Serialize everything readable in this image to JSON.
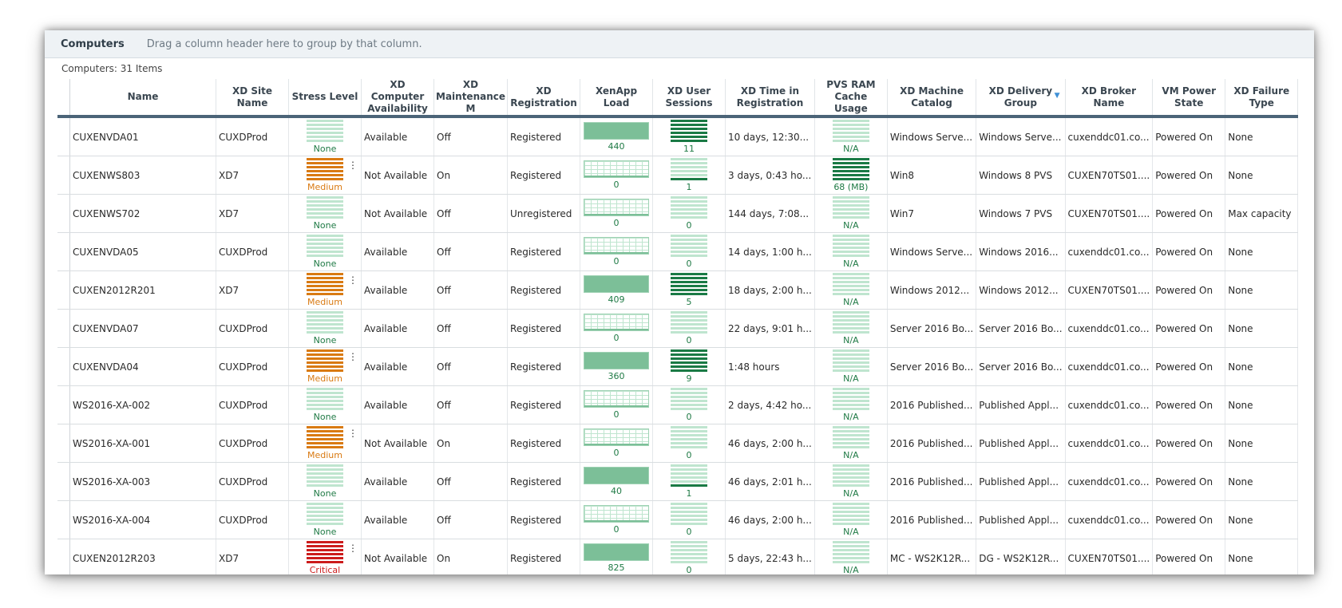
{
  "group_bar": {
    "title": "Computers",
    "hint": "Drag a column header here to group by that column."
  },
  "count_label": "Computers: 31 Items",
  "colors": {
    "none": "#1f7a45",
    "medium": "#d97a12",
    "critical": "#cc1c1c",
    "gauge_light": "#bfe5cf",
    "gauge_dark": "#1a7a45"
  },
  "columns": [
    {
      "label": "Name"
    },
    {
      "label": "XD Site Name"
    },
    {
      "label": "Stress Level"
    },
    {
      "label": "XD Computer Availability"
    },
    {
      "label": "XD Maintenance M"
    },
    {
      "label": "XD Registration"
    },
    {
      "label": "XenApp Load"
    },
    {
      "label": "XD User Sessions"
    },
    {
      "label": "XD Time in Registration"
    },
    {
      "label": "PVS RAM Cache Usage"
    },
    {
      "label": "XD Machine Catalog"
    },
    {
      "label": "XD Delivery Group"
    },
    {
      "label": "XD Broker Name"
    },
    {
      "label": "VM Power State"
    },
    {
      "label": "XD Failure Type"
    }
  ],
  "rows": [
    {
      "name": "CUXENVDA01",
      "site": "CUXDProd",
      "stress": "None",
      "stress_level": "none",
      "availability": "Available",
      "maintenance": "Off",
      "registration": "Registered",
      "load": "440",
      "load_fraction": 1.0,
      "sessions": "11",
      "sessions_fraction": 1.0,
      "time": "10 days, 12:30...",
      "pvs": "N/A",
      "pvs_fraction": 0,
      "catalog": "Windows Serve...",
      "delivery": "Windows Serve...",
      "broker": "cuxenddc01.co...",
      "power": "Powered On",
      "failure": "None"
    },
    {
      "name": "CUXENWS803",
      "site": "XD7",
      "stress": "Medium",
      "stress_level": "medium",
      "availability": "Not Available",
      "maintenance": "On",
      "registration": "Registered",
      "load": "0",
      "load_fraction": 0,
      "sessions": "1",
      "sessions_fraction": 0.1,
      "time": "3 days, 0:43 ho...",
      "pvs": "68 (MB)",
      "pvs_fraction": 1.0,
      "catalog": "Win8",
      "delivery": "Windows 8 PVS",
      "broker": "CUXEN70TS01....",
      "power": "Powered On",
      "failure": "None"
    },
    {
      "name": "CUXENWS702",
      "site": "XD7",
      "stress": "None",
      "stress_level": "none",
      "availability": "Not Available",
      "maintenance": "Off",
      "registration": "Unregistered",
      "load": "0",
      "load_fraction": 0,
      "sessions": "0",
      "sessions_fraction": 0,
      "time": "144 days, 7:08...",
      "pvs": "N/A",
      "pvs_fraction": 0,
      "catalog": "Win7",
      "delivery": "Windows 7 PVS",
      "broker": "CUXEN70TS01....",
      "power": "Powered On",
      "failure": "Max capacity"
    },
    {
      "name": "CUXENVDA05",
      "site": "CUXDProd",
      "stress": "None",
      "stress_level": "none",
      "availability": "Available",
      "maintenance": "Off",
      "registration": "Registered",
      "load": "0",
      "load_fraction": 0,
      "sessions": "0",
      "sessions_fraction": 0,
      "time": "14 days, 1:00 h...",
      "pvs": "N/A",
      "pvs_fraction": 0,
      "catalog": "Windows Serve...",
      "delivery": "Windows 2016...",
      "broker": "cuxenddc01.co...",
      "power": "Powered On",
      "failure": "None"
    },
    {
      "name": "CUXEN2012R201",
      "site": "XD7",
      "stress": "Medium",
      "stress_level": "medium",
      "availability": "Available",
      "maintenance": "Off",
      "registration": "Registered",
      "load": "409",
      "load_fraction": 1.0,
      "sessions": "5",
      "sessions_fraction": 1.0,
      "time": "18 days, 2:00 h...",
      "pvs": "N/A",
      "pvs_fraction": 0,
      "catalog": "Windows 2012...",
      "delivery": "Windows 2012...",
      "broker": "CUXEN70TS01....",
      "power": "Powered On",
      "failure": "None"
    },
    {
      "name": "CUXENVDA07",
      "site": "CUXDProd",
      "stress": "None",
      "stress_level": "none",
      "availability": "Available",
      "maintenance": "Off",
      "registration": "Registered",
      "load": "0",
      "load_fraction": 0,
      "sessions": "0",
      "sessions_fraction": 0,
      "time": "22 days, 9:01 h...",
      "pvs": "N/A",
      "pvs_fraction": 0,
      "catalog": "Server 2016 Bo...",
      "delivery": "Server 2016 Bo...",
      "broker": "cuxenddc01.co...",
      "power": "Powered On",
      "failure": "None"
    },
    {
      "name": "CUXENVDA04",
      "site": "CUXDProd",
      "stress": "Medium",
      "stress_level": "medium",
      "availability": "Available",
      "maintenance": "Off",
      "registration": "Registered",
      "load": "360",
      "load_fraction": 1.0,
      "sessions": "9",
      "sessions_fraction": 1.0,
      "time": "1:48 hours",
      "pvs": "N/A",
      "pvs_fraction": 0,
      "catalog": "Server 2016 Bo...",
      "delivery": "Server 2016 Bo...",
      "broker": "cuxenddc01.co...",
      "power": "Powered On",
      "failure": "None"
    },
    {
      "name": "WS2016-XA-002",
      "site": "CUXDProd",
      "stress": "None",
      "stress_level": "none",
      "availability": "Available",
      "maintenance": "Off",
      "registration": "Registered",
      "load": "0",
      "load_fraction": 0,
      "sessions": "0",
      "sessions_fraction": 0,
      "time": "2 days, 4:42 ho...",
      "pvs": "N/A",
      "pvs_fraction": 0,
      "catalog": "2016 Published...",
      "delivery": "Published Appl...",
      "broker": "cuxenddc01.co...",
      "power": "Powered On",
      "failure": "None"
    },
    {
      "name": "WS2016-XA-001",
      "site": "CUXDProd",
      "stress": "Medium",
      "stress_level": "medium",
      "availability": "Not Available",
      "maintenance": "On",
      "registration": "Registered",
      "load": "0",
      "load_fraction": 0,
      "sessions": "0",
      "sessions_fraction": 0,
      "time": "46 days, 2:00 h...",
      "pvs": "N/A",
      "pvs_fraction": 0,
      "catalog": "2016 Published...",
      "delivery": "Published Appl...",
      "broker": "cuxenddc01.co...",
      "power": "Powered On",
      "failure": "None"
    },
    {
      "name": "WS2016-XA-003",
      "site": "CUXDProd",
      "stress": "None",
      "stress_level": "none",
      "availability": "Available",
      "maintenance": "Off",
      "registration": "Registered",
      "load": "40",
      "load_fraction": 1.0,
      "sessions": "1",
      "sessions_fraction": 0.1,
      "time": "46 days, 2:01 h...",
      "pvs": "N/A",
      "pvs_fraction": 0,
      "catalog": "2016 Published...",
      "delivery": "Published Appl...",
      "broker": "cuxenddc01.co...",
      "power": "Powered On",
      "failure": "None"
    },
    {
      "name": "WS2016-XA-004",
      "site": "CUXDProd",
      "stress": "None",
      "stress_level": "none",
      "availability": "Available",
      "maintenance": "Off",
      "registration": "Registered",
      "load": "0",
      "load_fraction": 0,
      "sessions": "0",
      "sessions_fraction": 0,
      "time": "46 days, 2:00 h...",
      "pvs": "N/A",
      "pvs_fraction": 0,
      "catalog": "2016 Published...",
      "delivery": "Published Appl...",
      "broker": "cuxenddc01.co...",
      "power": "Powered On",
      "failure": "None"
    },
    {
      "name": "CUXEN2012R203",
      "site": "XD7",
      "stress": "Critical",
      "stress_level": "critical",
      "availability": "Not Available",
      "maintenance": "On",
      "registration": "Registered",
      "load": "825",
      "load_fraction": 1.0,
      "sessions": "0",
      "sessions_fraction": 0,
      "time": "5 days, 22:43 h...",
      "pvs": "N/A",
      "pvs_fraction": 0,
      "catalog": "MC - WS2K12R...",
      "delivery": "DG - WS2K12R...",
      "broker": "CUXEN70TS01....",
      "power": "Powered On",
      "failure": "None"
    }
  ]
}
